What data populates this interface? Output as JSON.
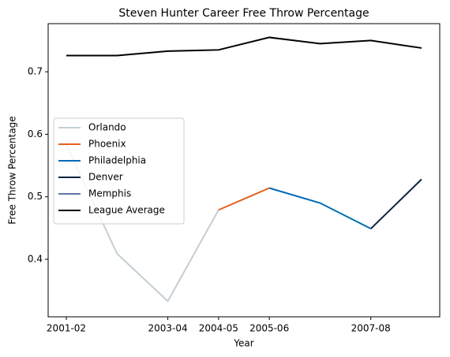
{
  "chart_data": {
    "type": "line",
    "title": "Steven Hunter Career Free Throw Percentage",
    "xlabel": "Year",
    "ylabel": "Free Throw Percentage",
    "categories": [
      "2001-02",
      null,
      "2003-04",
      "2004-05",
      "2005-06",
      null,
      "2007-08",
      null
    ],
    "series": [
      {
        "name": "Orlando",
        "color": "#c4ced4",
        "values": [
          0.583,
          0.409,
          0.333,
          0.479,
          null,
          null,
          null,
          null
        ]
      },
      {
        "name": "Phoenix",
        "color": "#e56020",
        "values": [
          null,
          null,
          null,
          0.479,
          0.514,
          null,
          null,
          null
        ]
      },
      {
        "name": "Philadelphia",
        "color": "#006bb6",
        "values": [
          null,
          null,
          null,
          null,
          0.514,
          0.49,
          0.449,
          null
        ]
      },
      {
        "name": "Denver",
        "color": "#0e2240",
        "values": [
          null,
          null,
          null,
          null,
          null,
          null,
          0.449,
          0.528
        ]
      },
      {
        "name": "Memphis",
        "color": "#5d76a9",
        "values": [
          null,
          null,
          null,
          null,
          null,
          null,
          null,
          0.528
        ]
      },
      {
        "name": "League Average",
        "color": "#000000",
        "values": [
          0.726,
          0.726,
          0.733,
          0.735,
          0.755,
          0.745,
          0.75,
          0.738
        ]
      }
    ],
    "ylim": [
      0.308,
      0.777
    ],
    "yticks": [
      0.4,
      0.5,
      0.6,
      0.7
    ],
    "grid": false,
    "legend": "center left"
  }
}
